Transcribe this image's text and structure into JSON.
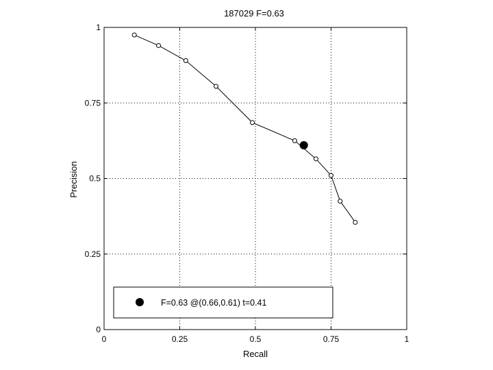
{
  "chart_data": {
    "type": "line",
    "title": "187029 F=0.63",
    "xlabel": "Recall",
    "ylabel": "Precision",
    "xlim": [
      0,
      1
    ],
    "ylim": [
      0,
      1
    ],
    "xticks": [
      0,
      0.25,
      0.5,
      0.75,
      1
    ],
    "yticks": [
      0,
      0.25,
      0.5,
      0.75,
      1
    ],
    "xtick_labels": [
      "0",
      "0.25",
      "0.5",
      "0.75",
      "1"
    ],
    "ytick_labels": [
      "0",
      "0.25",
      "0.5",
      "0.75",
      "1"
    ],
    "grid": true,
    "legend_position": "bottom-left",
    "series": [
      {
        "marker": "open-circle",
        "x": [
          0.1,
          0.18,
          0.27,
          0.37,
          0.49,
          0.63,
          0.7,
          0.75,
          0.78,
          0.83
        ],
        "y": [
          0.975,
          0.94,
          0.89,
          0.805,
          0.685,
          0.625,
          0.565,
          0.51,
          0.425,
          0.355
        ]
      }
    ],
    "best_point": {
      "marker": "filled-circle",
      "x": 0.66,
      "y": 0.61,
      "label": "F=0.63 @(0.66,0.61) t=0.41"
    }
  }
}
